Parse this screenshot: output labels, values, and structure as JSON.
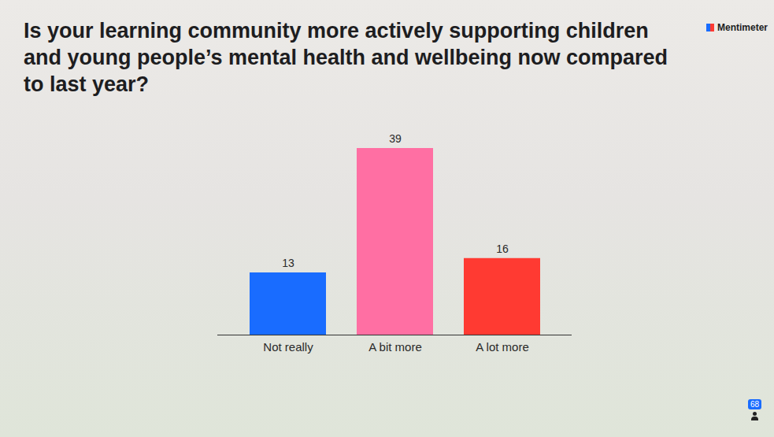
{
  "chart_data": {
    "type": "bar",
    "title": "Is your learning community more actively supporting children and young people’s mental health and wellbeing now compared to last year?",
    "categories": [
      "Not really",
      "A bit more",
      "A lot more"
    ],
    "values": [
      13,
      39,
      16
    ],
    "colors": [
      "#196cff",
      "#ff6fa3",
      "#ff3a32"
    ],
    "data_labels": true,
    "tick_labels": "x",
    "annotations": [
      "Mentimeter",
      "68"
    ]
  }
}
